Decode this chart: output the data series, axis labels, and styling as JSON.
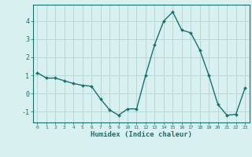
{
  "x": [
    0,
    1,
    2,
    3,
    4,
    5,
    6,
    7,
    8,
    9,
    10,
    11,
    12,
    13,
    14,
    15,
    16,
    17,
    18,
    19,
    20,
    21,
    22,
    23
  ],
  "y": [
    1.15,
    0.85,
    0.85,
    0.7,
    0.55,
    0.45,
    0.4,
    -0.3,
    -0.9,
    -1.2,
    -0.85,
    -0.85,
    1.0,
    2.7,
    4.0,
    4.5,
    3.5,
    3.35,
    2.4,
    1.0,
    -0.6,
    -1.2,
    -1.15,
    0.3
  ],
  "xlabel": "Humidex (Indice chaleur)",
  "line_color": "#1a7070",
  "marker_color": "#1a7070",
  "bg_color": "#d8f0f0",
  "grid_color": "#b8d8d8",
  "tick_label_color": "#1a7070",
  "spine_color": "#1a7070",
  "ylim": [
    -1.6,
    4.9
  ],
  "xlim": [
    -0.5,
    23.5
  ],
  "yticks": [
    -1,
    0,
    1,
    2,
    3,
    4
  ],
  "xticks": [
    0,
    1,
    2,
    3,
    4,
    5,
    6,
    7,
    8,
    9,
    10,
    11,
    12,
    13,
    14,
    15,
    16,
    17,
    18,
    19,
    20,
    21,
    22,
    23
  ]
}
